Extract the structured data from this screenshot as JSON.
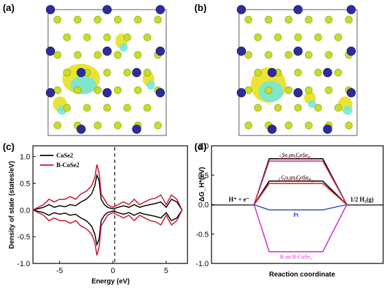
{
  "panels": {
    "a": {
      "label": "(a)"
    },
    "b": {
      "label": "(b)"
    },
    "c": {
      "label": "(c)"
    },
    "d": {
      "label": "(d)"
    }
  },
  "colors": {
    "se_atom": "#c8dc28",
    "co_atom": "#2d2d9a",
    "charge_yellow": "#e8e020",
    "charge_cyan": "#6fe6e0",
    "cose2_line": "#000000",
    "b_cose2_line": "#c8102e",
    "pt_line": "#1f3fbf",
    "b_level": "#cc33cc",
    "se_b_level": "#cc3377",
    "co_b_level": "#cc2222"
  },
  "dos_chart": {
    "ylabel": "Density of state (states/eV)",
    "xlabel": "Energy (eV)",
    "y_ticks": [
      "1.0",
      "0.5",
      "0.0",
      "-0.5",
      "-1.0"
    ],
    "x_ticks": [
      "-5",
      "0",
      "5"
    ],
    "legend": [
      "CoSe2",
      "B-CoSe2"
    ]
  },
  "gibbs_chart": {
    "ylabel": "ΔG_H*(eV)",
    "xlabel": "Reaction coordinate",
    "y_ticks": [
      "1.0",
      "0.5",
      "0.0",
      "-0.5",
      "-1.0"
    ],
    "left_label": "H⁺ + e⁻",
    "right_label": "1/2 H₂(g)",
    "level_labels": {
      "se_cose2": "Se on CoSe₂",
      "se_b_cose2": "Se on B-CoSe₂",
      "co_cose2": "Co on CoSe₂",
      "co_b_cose2": "Co on B-CoSe₂",
      "pt": "Pt",
      "b_b_cose2": "B on B-CoSe₂"
    }
  },
  "chart_data": [
    {
      "type": "line",
      "xlabel": "Energy (eV)",
      "ylabel": "Density of state (states/eV)",
      "xlim": [
        -7.5,
        7
      ],
      "ylim": [
        -1.0,
        1.2
      ],
      "series": [
        {
          "name": "CoSe2",
          "color": "#000000",
          "x": [
            -7.5,
            -6.5,
            -6,
            -5.5,
            -5,
            -4.5,
            -4,
            -3.5,
            -3,
            -2.5,
            -2,
            -1.7,
            -1.5,
            -1.3,
            -1.1,
            -0.8,
            -0.5,
            0,
            0.5,
            1,
            1.5,
            2,
            2.5,
            3,
            3.5,
            4,
            4.5,
            5,
            5.5,
            6,
            6.5
          ],
          "y": [
            0.0,
            0.05,
            0.1,
            0.05,
            0.08,
            0.06,
            0.1,
            0.08,
            0.15,
            0.2,
            0.3,
            0.45,
            0.65,
            0.55,
            0.2,
            0.1,
            0.05,
            0.02,
            0.05,
            0.08,
            0.05,
            0.1,
            0.05,
            0.08,
            0.1,
            0.12,
            0.15,
            0.05,
            0.2,
            0.15,
            0.0
          ],
          "mirrored": true
        },
        {
          "name": "B-CoSe2",
          "color": "#c8102e",
          "x": [
            -7.5,
            -6.5,
            -6,
            -5.5,
            -5,
            -4.5,
            -4,
            -3.5,
            -3,
            -2.5,
            -2,
            -1.7,
            -1.5,
            -1.3,
            -1.1,
            -0.8,
            -0.5,
            0,
            0.5,
            1,
            1.5,
            2,
            2.5,
            3,
            3.5,
            4,
            4.5,
            5,
            5.5,
            6,
            6.5
          ],
          "y": [
            0.0,
            0.1,
            0.2,
            0.15,
            0.2,
            0.2,
            0.25,
            0.2,
            0.3,
            0.35,
            0.45,
            0.6,
            0.85,
            0.7,
            0.3,
            0.2,
            0.1,
            0.05,
            0.1,
            0.15,
            0.1,
            0.2,
            0.1,
            0.15,
            0.2,
            0.22,
            0.28,
            0.1,
            0.28,
            0.2,
            0.0
          ],
          "mirrored": true
        }
      ]
    },
    {
      "type": "line",
      "xlabel": "Reaction coordinate",
      "ylabel": "ΔG_H*(eV)",
      "ylim": [
        -1.0,
        1.0
      ],
      "levels": [
        {
          "name": "Se on CoSe2",
          "value": 0.78,
          "color": "#000000"
        },
        {
          "name": "Se on B-CoSe2",
          "value": 0.74,
          "color": "#cc3377"
        },
        {
          "name": "Co on CoSe2",
          "value": 0.4,
          "color": "#000000"
        },
        {
          "name": "Co on B-CoSe2",
          "value": 0.36,
          "color": "#cc2222"
        },
        {
          "name": "Pt",
          "value": -0.09,
          "color": "#1f3fbf"
        },
        {
          "name": "B on B-CoSe2",
          "value": -0.8,
          "color": "#cc33cc"
        }
      ]
    }
  ]
}
